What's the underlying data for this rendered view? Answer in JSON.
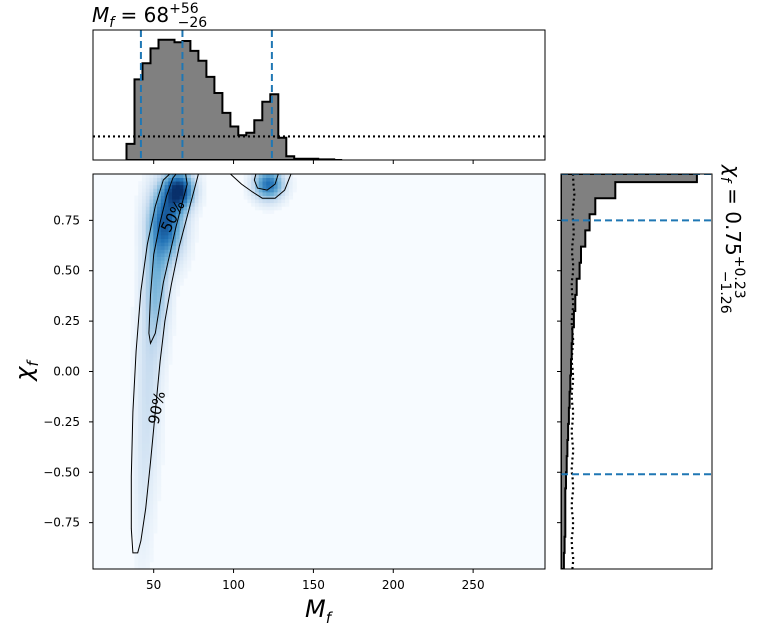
{
  "chart_data": {
    "type": "heatmap",
    "joint": {
      "xlabel": "M_f",
      "ylabel": "χ_f",
      "xlim": [
        12,
        295
      ],
      "ylim": [
        -0.98,
        0.98
      ],
      "xticks": [
        50,
        100,
        150,
        200,
        250
      ],
      "xtick_labels": [
        "50",
        "100",
        "150",
        "200",
        "250"
      ],
      "yticks": [
        -0.75,
        -0.5,
        -0.25,
        0.0,
        0.25,
        0.5,
        0.75
      ],
      "ytick_labels": [
        "−0.75",
        "−0.50",
        "−0.25",
        "0.00",
        "0.25",
        "0.50",
        "0.75"
      ],
      "colormap": [
        "#f7fbff",
        "#c6dbef",
        "#6baed6",
        "#2171b5",
        "#08306b"
      ],
      "density_peaks": [
        {
          "x": 66,
          "y": 0.9,
          "sx": 6,
          "sy": 0.06,
          "w": 1.0
        },
        {
          "x": 58,
          "y": 0.74,
          "sx": 7,
          "sy": 0.12,
          "w": 0.8
        },
        {
          "x": 52,
          "y": 0.45,
          "sx": 5,
          "sy": 0.2,
          "w": 0.35
        },
        {
          "x": 47,
          "y": 0.0,
          "sx": 5,
          "sy": 0.35,
          "w": 0.15
        },
        {
          "x": 43,
          "y": -0.55,
          "sx": 4,
          "sy": 0.3,
          "w": 0.07
        },
        {
          "x": 122,
          "y": 0.93,
          "sx": 6,
          "sy": 0.05,
          "w": 0.75
        }
      ],
      "contours": [
        {
          "label": "50%",
          "label_at": [
            62,
            0.77
          ],
          "label_rotation": -62,
          "points": [
            [
              64,
              0.98
            ],
            [
              70,
              0.98
            ],
            [
              71,
              0.93
            ],
            [
              68,
              0.84
            ],
            [
              64,
              0.72
            ],
            [
              60,
              0.58
            ],
            [
              56,
              0.44
            ],
            [
              53,
              0.29
            ],
            [
              51,
              0.19
            ],
            [
              48,
              0.14
            ],
            [
              47,
              0.19
            ],
            [
              48,
              0.38
            ],
            [
              50,
              0.58
            ],
            [
              54,
              0.74
            ],
            [
              58,
              0.87
            ],
            [
              62,
              0.96
            ],
            [
              64,
              0.98
            ]
          ]
        },
        {
          "label": "50%",
          "points": [
            [
              114,
              0.98
            ],
            [
              128,
              0.98
            ],
            [
              126,
              0.93
            ],
            [
              121,
              0.9
            ],
            [
              115,
              0.91
            ],
            [
              113,
              0.95
            ],
            [
              114,
              0.98
            ]
          ]
        },
        {
          "label": "90%",
          "label_at": [
            52,
            -0.18
          ],
          "label_rotation": -78,
          "points": [
            [
              60,
              0.98
            ],
            [
              78,
              0.98
            ],
            [
              76,
              0.92
            ],
            [
              72,
              0.8
            ],
            [
              66,
              0.62
            ],
            [
              61,
              0.43
            ],
            [
              57,
              0.25
            ],
            [
              54,
              0.05
            ],
            [
              51,
              -0.2
            ],
            [
              48,
              -0.45
            ],
            [
              45,
              -0.68
            ],
            [
              42,
              -0.84
            ],
            [
              40,
              -0.9
            ],
            [
              37,
              -0.9
            ],
            [
              36,
              -0.78
            ],
            [
              36,
              -0.52
            ],
            [
              37,
              -0.2
            ],
            [
              39,
              0.1
            ],
            [
              42,
              0.4
            ],
            [
              46,
              0.63
            ],
            [
              51,
              0.82
            ],
            [
              56,
              0.95
            ],
            [
              60,
              0.98
            ]
          ]
        },
        {
          "label": "90%",
          "points": [
            [
              98,
              0.98
            ],
            [
              136,
              0.98
            ],
            [
              132,
              0.9
            ],
            [
              126,
              0.86
            ],
            [
              118,
              0.86
            ],
            [
              112,
              0.89
            ],
            [
              105,
              0.93
            ],
            [
              98,
              0.98
            ]
          ]
        }
      ]
    },
    "top_marginal": {
      "variable": "M_f",
      "title": "M_f = 68^{+56}_{-26}",
      "median": 68,
      "upper_err": 56,
      "lower_err": 26,
      "quantile_lines": [
        42,
        68,
        124
      ],
      "bin_edges": [
        33,
        38,
        43,
        48,
        53,
        58,
        63,
        68,
        73,
        78,
        83,
        88,
        93,
        98,
        103,
        108,
        113,
        118,
        123,
        128,
        133,
        138,
        143,
        148,
        153,
        158,
        163,
        168
      ],
      "counts": [
        0.13,
        0.65,
        0.78,
        0.9,
        0.97,
        0.97,
        0.95,
        0.96,
        0.88,
        0.8,
        0.67,
        0.54,
        0.38,
        0.27,
        0.2,
        0.22,
        0.32,
        0.47,
        0.53,
        0.18,
        0.03,
        0.01,
        0.01,
        0.01,
        0.005,
        0.005,
        0.0
      ],
      "prior_level": 0.19
    },
    "right_marginal": {
      "variable": "χ_f",
      "title": "χ_f = 0.75^{+0.23}_{-1.26}",
      "median": 0.75,
      "upper_err": 0.23,
      "lower_err": 1.26,
      "quantile_lines": [
        -0.51,
        0.75,
        0.98
      ],
      "bin_edges": [
        -0.98,
        -0.9,
        -0.82,
        -0.74,
        -0.66,
        -0.58,
        -0.5,
        -0.42,
        -0.34,
        -0.26,
        -0.18,
        -0.1,
        -0.02,
        0.06,
        0.14,
        0.22,
        0.3,
        0.38,
        0.46,
        0.54,
        0.62,
        0.7,
        0.78,
        0.86,
        0.94,
        0.98
      ],
      "counts": [
        0.02,
        0.025,
        0.03,
        0.03,
        0.03,
        0.035,
        0.04,
        0.045,
        0.05,
        0.055,
        0.06,
        0.065,
        0.07,
        0.075,
        0.08,
        0.09,
        0.1,
        0.11,
        0.13,
        0.14,
        0.17,
        0.2,
        0.24,
        0.38,
        0.95
      ],
      "prior_level": 0.08
    }
  }
}
